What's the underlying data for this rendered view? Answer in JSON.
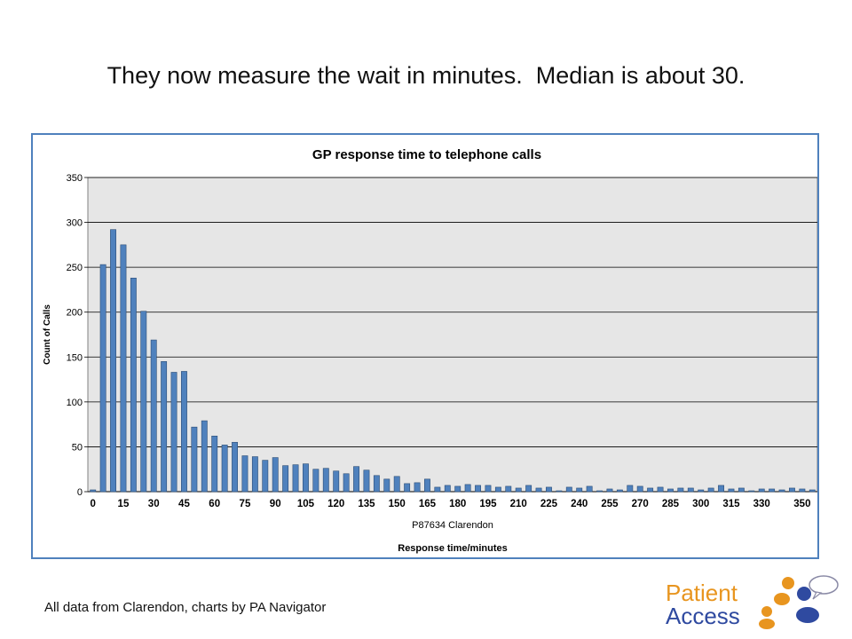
{
  "slide": {
    "title": "They now measure the wait in minutes.  Median is about 30.",
    "footer": "All data from Clarendon, charts by PA Navigator"
  },
  "logo": {
    "line1": "Patient",
    "line2": "Access",
    "colors": {
      "orange": "#e8951f",
      "blue": "#2f4aa0",
      "bubble_outline": "#7a7a9a"
    }
  },
  "colors": {
    "bar_fill": "#4f81bd",
    "bar_stroke": "#2c4d75",
    "plot_bg": "#e6e6e6",
    "gridline": "#000000",
    "frame_border": "#4f81bd"
  },
  "chart_data": {
    "type": "bar",
    "title": "GP response time to telephone calls",
    "xlabel": "Response time/minutes",
    "category_label": "P87634 Clarendon",
    "ylabel": "Count of Calls",
    "ylim": [
      0,
      350
    ],
    "y_ticks": [
      0,
      50,
      100,
      150,
      200,
      250,
      300,
      350
    ],
    "x_tick_labels": [
      "0",
      "15",
      "30",
      "45",
      "60",
      "75",
      "90",
      "105",
      "120",
      "135",
      "150",
      "165",
      "180",
      "195",
      "210",
      "225",
      "240",
      "255",
      "270",
      "285",
      "300",
      "315",
      "330",
      "350"
    ],
    "grid": true,
    "legend": "none",
    "x_step": 5,
    "x_start": 0,
    "values": [
      2,
      253,
      292,
      275,
      238,
      201,
      169,
      145,
      133,
      134,
      72,
      79,
      62,
      52,
      55,
      40,
      39,
      35,
      38,
      29,
      30,
      31,
      25,
      26,
      23,
      20,
      28,
      24,
      18,
      14,
      17,
      9,
      10,
      14,
      5,
      7,
      6,
      8,
      7,
      7,
      5,
      6,
      4,
      7,
      4,
      5,
      1,
      5,
      4,
      6,
      1,
      3,
      2,
      7,
      6,
      4,
      5,
      3,
      4,
      4,
      2,
      4,
      7,
      3,
      4,
      1,
      3,
      3,
      2,
      4,
      3,
      2
    ]
  }
}
